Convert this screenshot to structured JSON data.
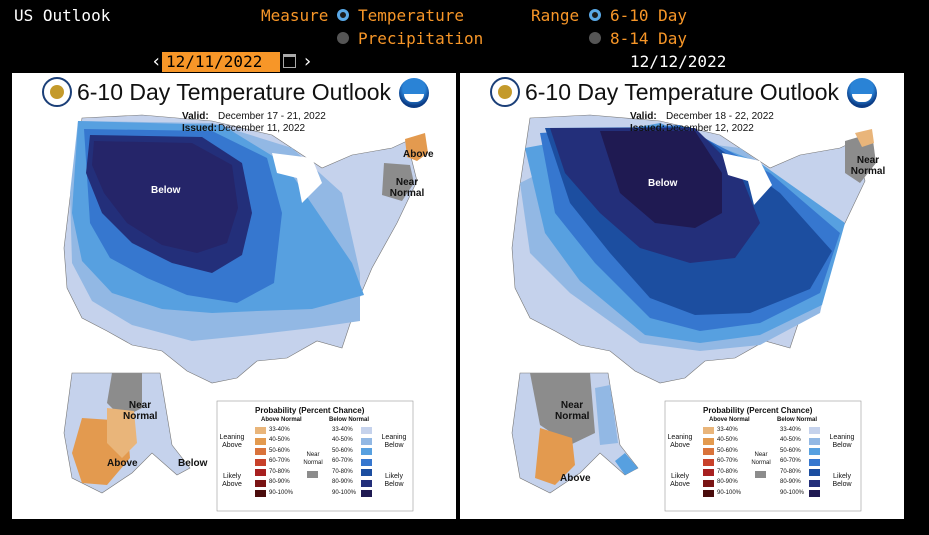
{
  "app": {
    "title": "US Outlook"
  },
  "measure": {
    "label": "Measure",
    "options": [
      {
        "label": "Temperature",
        "selected": true
      },
      {
        "label": "Precipitation",
        "selected": false
      }
    ]
  },
  "range": {
    "label": "Range",
    "options": [
      {
        "label": "6-10 Day",
        "selected": true
      },
      {
        "label": "8-14 Day",
        "selected": false
      }
    ]
  },
  "nav": {
    "prev_symbol": "‹",
    "next_symbol": "›",
    "calendar_icon": "calendar-icon"
  },
  "date_input": {
    "value": "12/11/2022"
  },
  "compare_date": "12/12/2022",
  "colors": {
    "accent": "#f79628",
    "radio_selected": "#5aa8e6",
    "below_33_40": "#c5d2ec",
    "below_40_50": "#92b8e4",
    "below_50_60": "#57a0e0",
    "below_60_70": "#3677cf",
    "below_70_80": "#1c4ea0",
    "below_80_90": "#232f7a",
    "below_90_100": "#1f1a52",
    "near_normal": "#8c8c8c",
    "above_33_40": "#e9b57a",
    "above_40_50": "#e39a4f"
  },
  "panels": [
    {
      "title": "6-10 Day Temperature Outlook",
      "valid_label": "Valid:",
      "valid": "December 17 - 21, 2022",
      "issued_label": "Issued:",
      "issued": "December 11, 2022",
      "labels": {
        "below": "Below",
        "above_ne": "Above",
        "near_normal_ne": "Near Normal",
        "near_normal_ak": "Near Normal",
        "above_ak": "Above",
        "below_ak": "Below"
      }
    },
    {
      "title": "6-10 Day Temperature Outlook",
      "valid_label": "Valid:",
      "valid": "December 18 - 22, 2022",
      "issued_label": "Issued:",
      "issued": "December 12, 2022",
      "labels": {
        "below": "Below",
        "near_normal_ne": "Near Normal",
        "near_normal_ak": "Near Normal",
        "above_ak": "Above"
      }
    }
  ],
  "legend": {
    "title": "Probability (Percent Chance)",
    "above_header": "Above Normal",
    "below_header": "Below Normal",
    "near_header": "Near Normal",
    "leaning_above": "Leaning Above",
    "likely_above": "Likely Above",
    "leaning_below": "Leaning Below",
    "likely_below": "Likely Below",
    "ranges": [
      "33-40%",
      "40-50%",
      "50-60%",
      "60-70%",
      "70-80%",
      "80-90%",
      "90-100%"
    ],
    "above_colors": [
      "#e9b57a",
      "#e39a4f",
      "#d9733b",
      "#c8412a",
      "#a72020",
      "#7a1414",
      "#4a0c0c"
    ],
    "below_colors": [
      "#c5d2ec",
      "#92b8e4",
      "#57a0e0",
      "#3677cf",
      "#1c4ea0",
      "#232f7a",
      "#1f1a52"
    ]
  }
}
